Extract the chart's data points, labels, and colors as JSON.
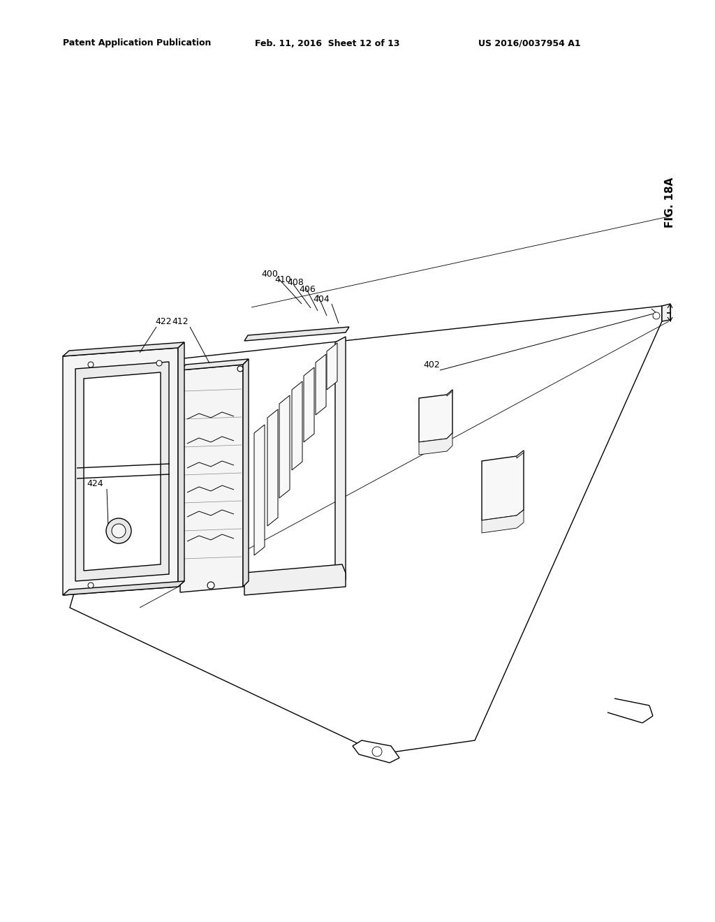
{
  "bg_color": "#ffffff",
  "lc": "#000000",
  "header_left": "Patent Application Publication",
  "header_mid": "Feb. 11, 2016  Sheet 12 of 13",
  "header_right": "US 2016/0037954 A1",
  "fig_label": "FIG. 18A",
  "lw_main": 1.0,
  "lw_thin": 0.6,
  "lw_heavy": 1.4
}
